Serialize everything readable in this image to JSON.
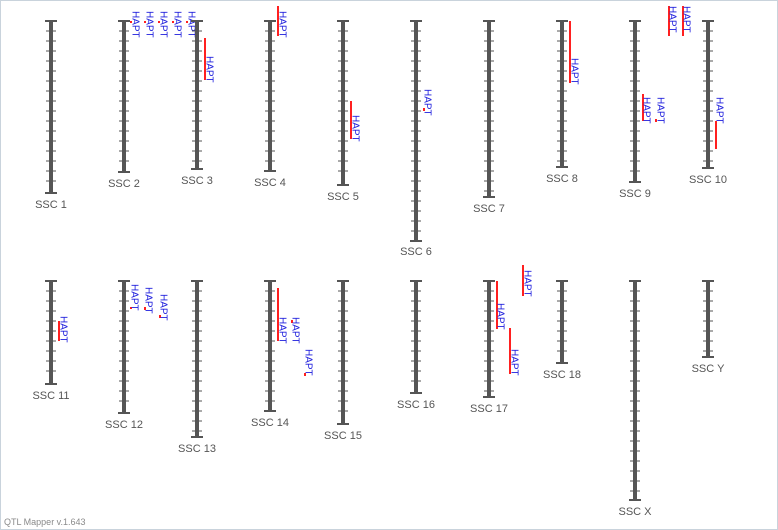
{
  "app": {
    "version_label": "QTL Mapper v.1.643"
  },
  "colors": {
    "chromosome": "#555555",
    "qtl_bar": "#ff2020",
    "qtl_text": "#1a1adc",
    "chr_label": "#555555"
  },
  "chromosomes": [
    {
      "name": "SSC 1",
      "qtls": []
    },
    {
      "name": "SSC 2",
      "qtls": [
        {
          "label": "HAPT"
        },
        {
          "label": "HAPT"
        },
        {
          "label": "HAPT"
        },
        {
          "label": "HAPT"
        },
        {
          "label": "HAPT"
        }
      ]
    },
    {
      "name": "SSC 3",
      "qtls": [
        {
          "label": "HAPT"
        }
      ]
    },
    {
      "name": "SSC 4",
      "qtls": [
        {
          "label": "HAPT"
        }
      ]
    },
    {
      "name": "SSC 5",
      "qtls": [
        {
          "label": "HAPT"
        }
      ]
    },
    {
      "name": "SSC 6",
      "qtls": [
        {
          "label": "HAPT"
        }
      ]
    },
    {
      "name": "SSC 7",
      "qtls": []
    },
    {
      "name": "SSC 8",
      "qtls": [
        {
          "label": "HAPT"
        }
      ]
    },
    {
      "name": "SSC 9",
      "qtls": [
        {
          "label": "HAPT"
        },
        {
          "label": "HAPT"
        }
      ]
    },
    {
      "name": "SSC 10",
      "qtls": [
        {
          "label": "HAPT"
        },
        {
          "label": "HAPT"
        },
        {
          "label": "HAPT"
        }
      ]
    },
    {
      "name": "SSC 11",
      "qtls": [
        {
          "label": "HAPT"
        }
      ]
    },
    {
      "name": "SSC 12",
      "qtls": [
        {
          "label": "HAPT"
        },
        {
          "label": "HAPT"
        },
        {
          "label": "HAPT"
        }
      ]
    },
    {
      "name": "SSC 13",
      "qtls": []
    },
    {
      "name": "SSC 14",
      "qtls": [
        {
          "label": "HAPT"
        },
        {
          "label": "HAPT"
        },
        {
          "label": "HAPT"
        }
      ]
    },
    {
      "name": "SSC 15",
      "qtls": []
    },
    {
      "name": "SSC 16",
      "qtls": []
    },
    {
      "name": "SSC 17",
      "qtls": [
        {
          "label": "HAPT"
        },
        {
          "label": "HAPT"
        },
        {
          "label": "HAPT"
        }
      ]
    },
    {
      "name": "SSC 18",
      "qtls": []
    },
    {
      "name": "SSC X",
      "qtls": []
    },
    {
      "name": "SSC Y",
      "qtls": []
    }
  ]
}
